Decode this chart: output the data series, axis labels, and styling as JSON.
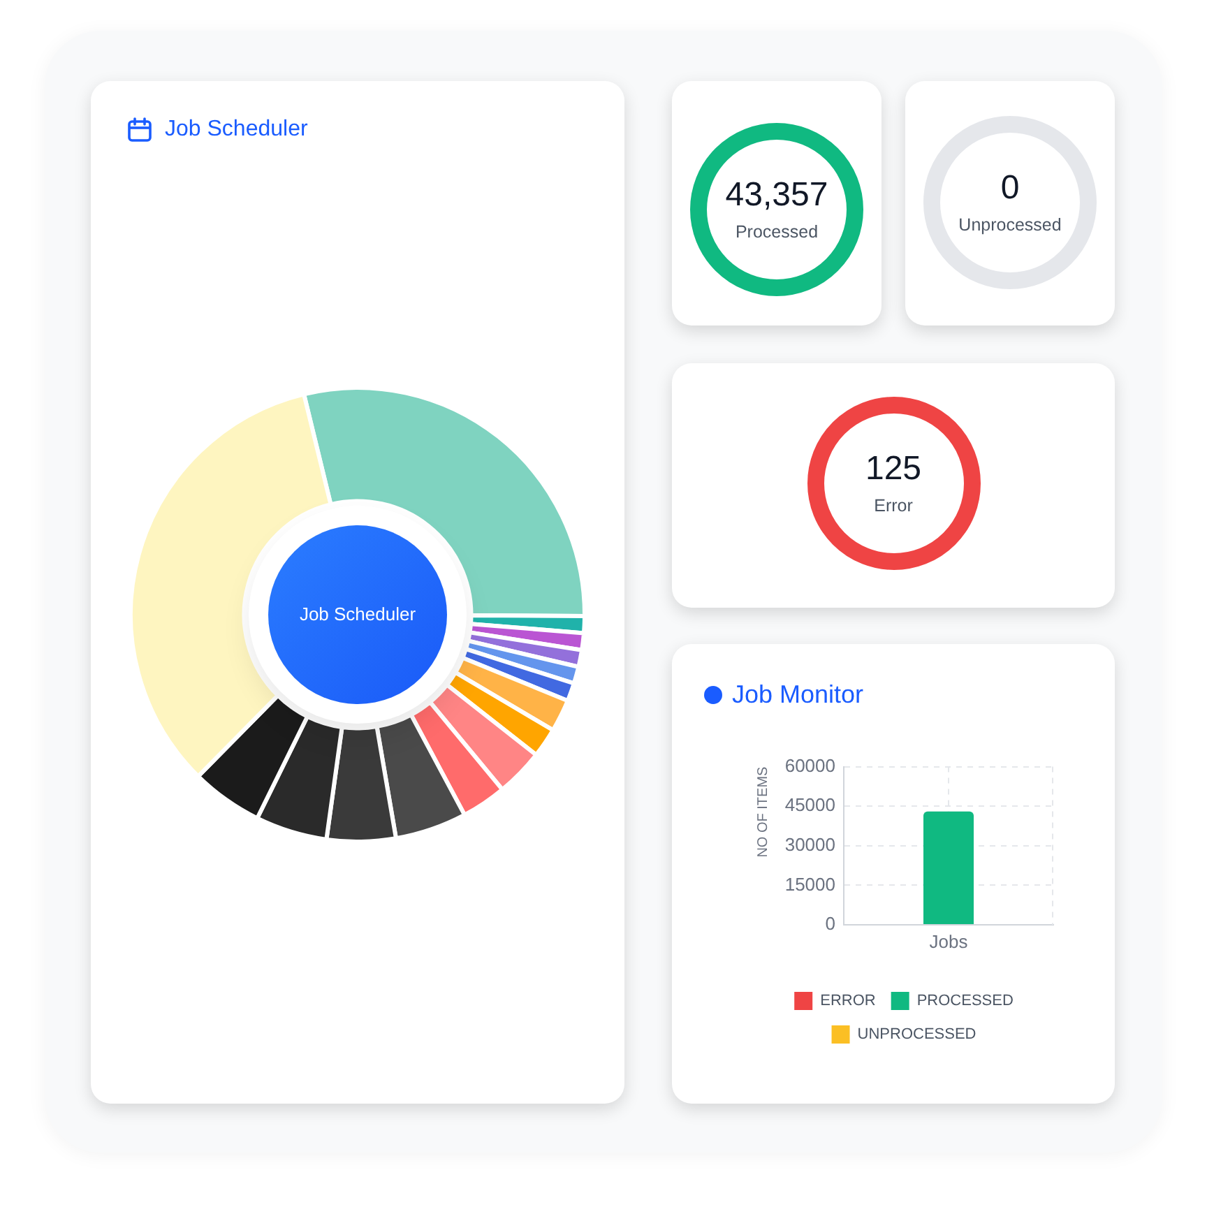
{
  "chart_data": [
    {
      "type": "donut",
      "title": "Job Scheduler",
      "annotations": [
        "Job Scheduler"
      ],
      "categories": [
        null,
        null,
        null,
        null,
        null,
        null,
        null,
        null,
        null,
        null,
        null,
        null,
        null,
        null,
        null
      ],
      "values": [
        28.9,
        1.2,
        1.2,
        1.2,
        1.2,
        1.3,
        2.3,
        2.1,
        3.4,
        3.2,
        5.1,
        4.9,
        5.1,
        5.1,
        33.8
      ],
      "colors": [
        "#7fd3c0",
        "#20b2aa",
        "#ba55d3",
        "#9370db",
        "#6495ed",
        "#4169e1",
        "#ffb347",
        "#ffa500",
        "#ff8585",
        "#ff6b6b",
        "#4a4a4a",
        "#3a3a3a",
        "#2a2a2a",
        "#1b1b1b",
        "#fef5c0"
      ]
    },
    {
      "type": "other",
      "annotations": [
        "43,357",
        "Processed"
      ],
      "color": "#10b981"
    },
    {
      "type": "other",
      "annotations": [
        "0",
        "Unprocessed"
      ],
      "color": "#e5e7eb"
    },
    {
      "type": "other",
      "annotations": [
        "125",
        "Error"
      ],
      "color": "#ef4444"
    },
    {
      "type": "bar",
      "title": "Job Monitor",
      "categories": [
        "Jobs"
      ],
      "series": [
        {
          "name": "ERROR",
          "color": "#ef4444",
          "values": [
            0
          ]
        },
        {
          "name": "PROCESSED",
          "color": "#10b981",
          "values": [
            43000
          ]
        },
        {
          "name": "UNPROCESSED",
          "color": "#fbbf24",
          "values": [
            0
          ]
        }
      ],
      "ylabel": "NO OF ITEMS",
      "ylim": [
        0,
        60000
      ],
      "yticks": [
        0,
        15000,
        30000,
        45000,
        60000
      ],
      "grid": true,
      "legend": "bottom"
    }
  ]
}
